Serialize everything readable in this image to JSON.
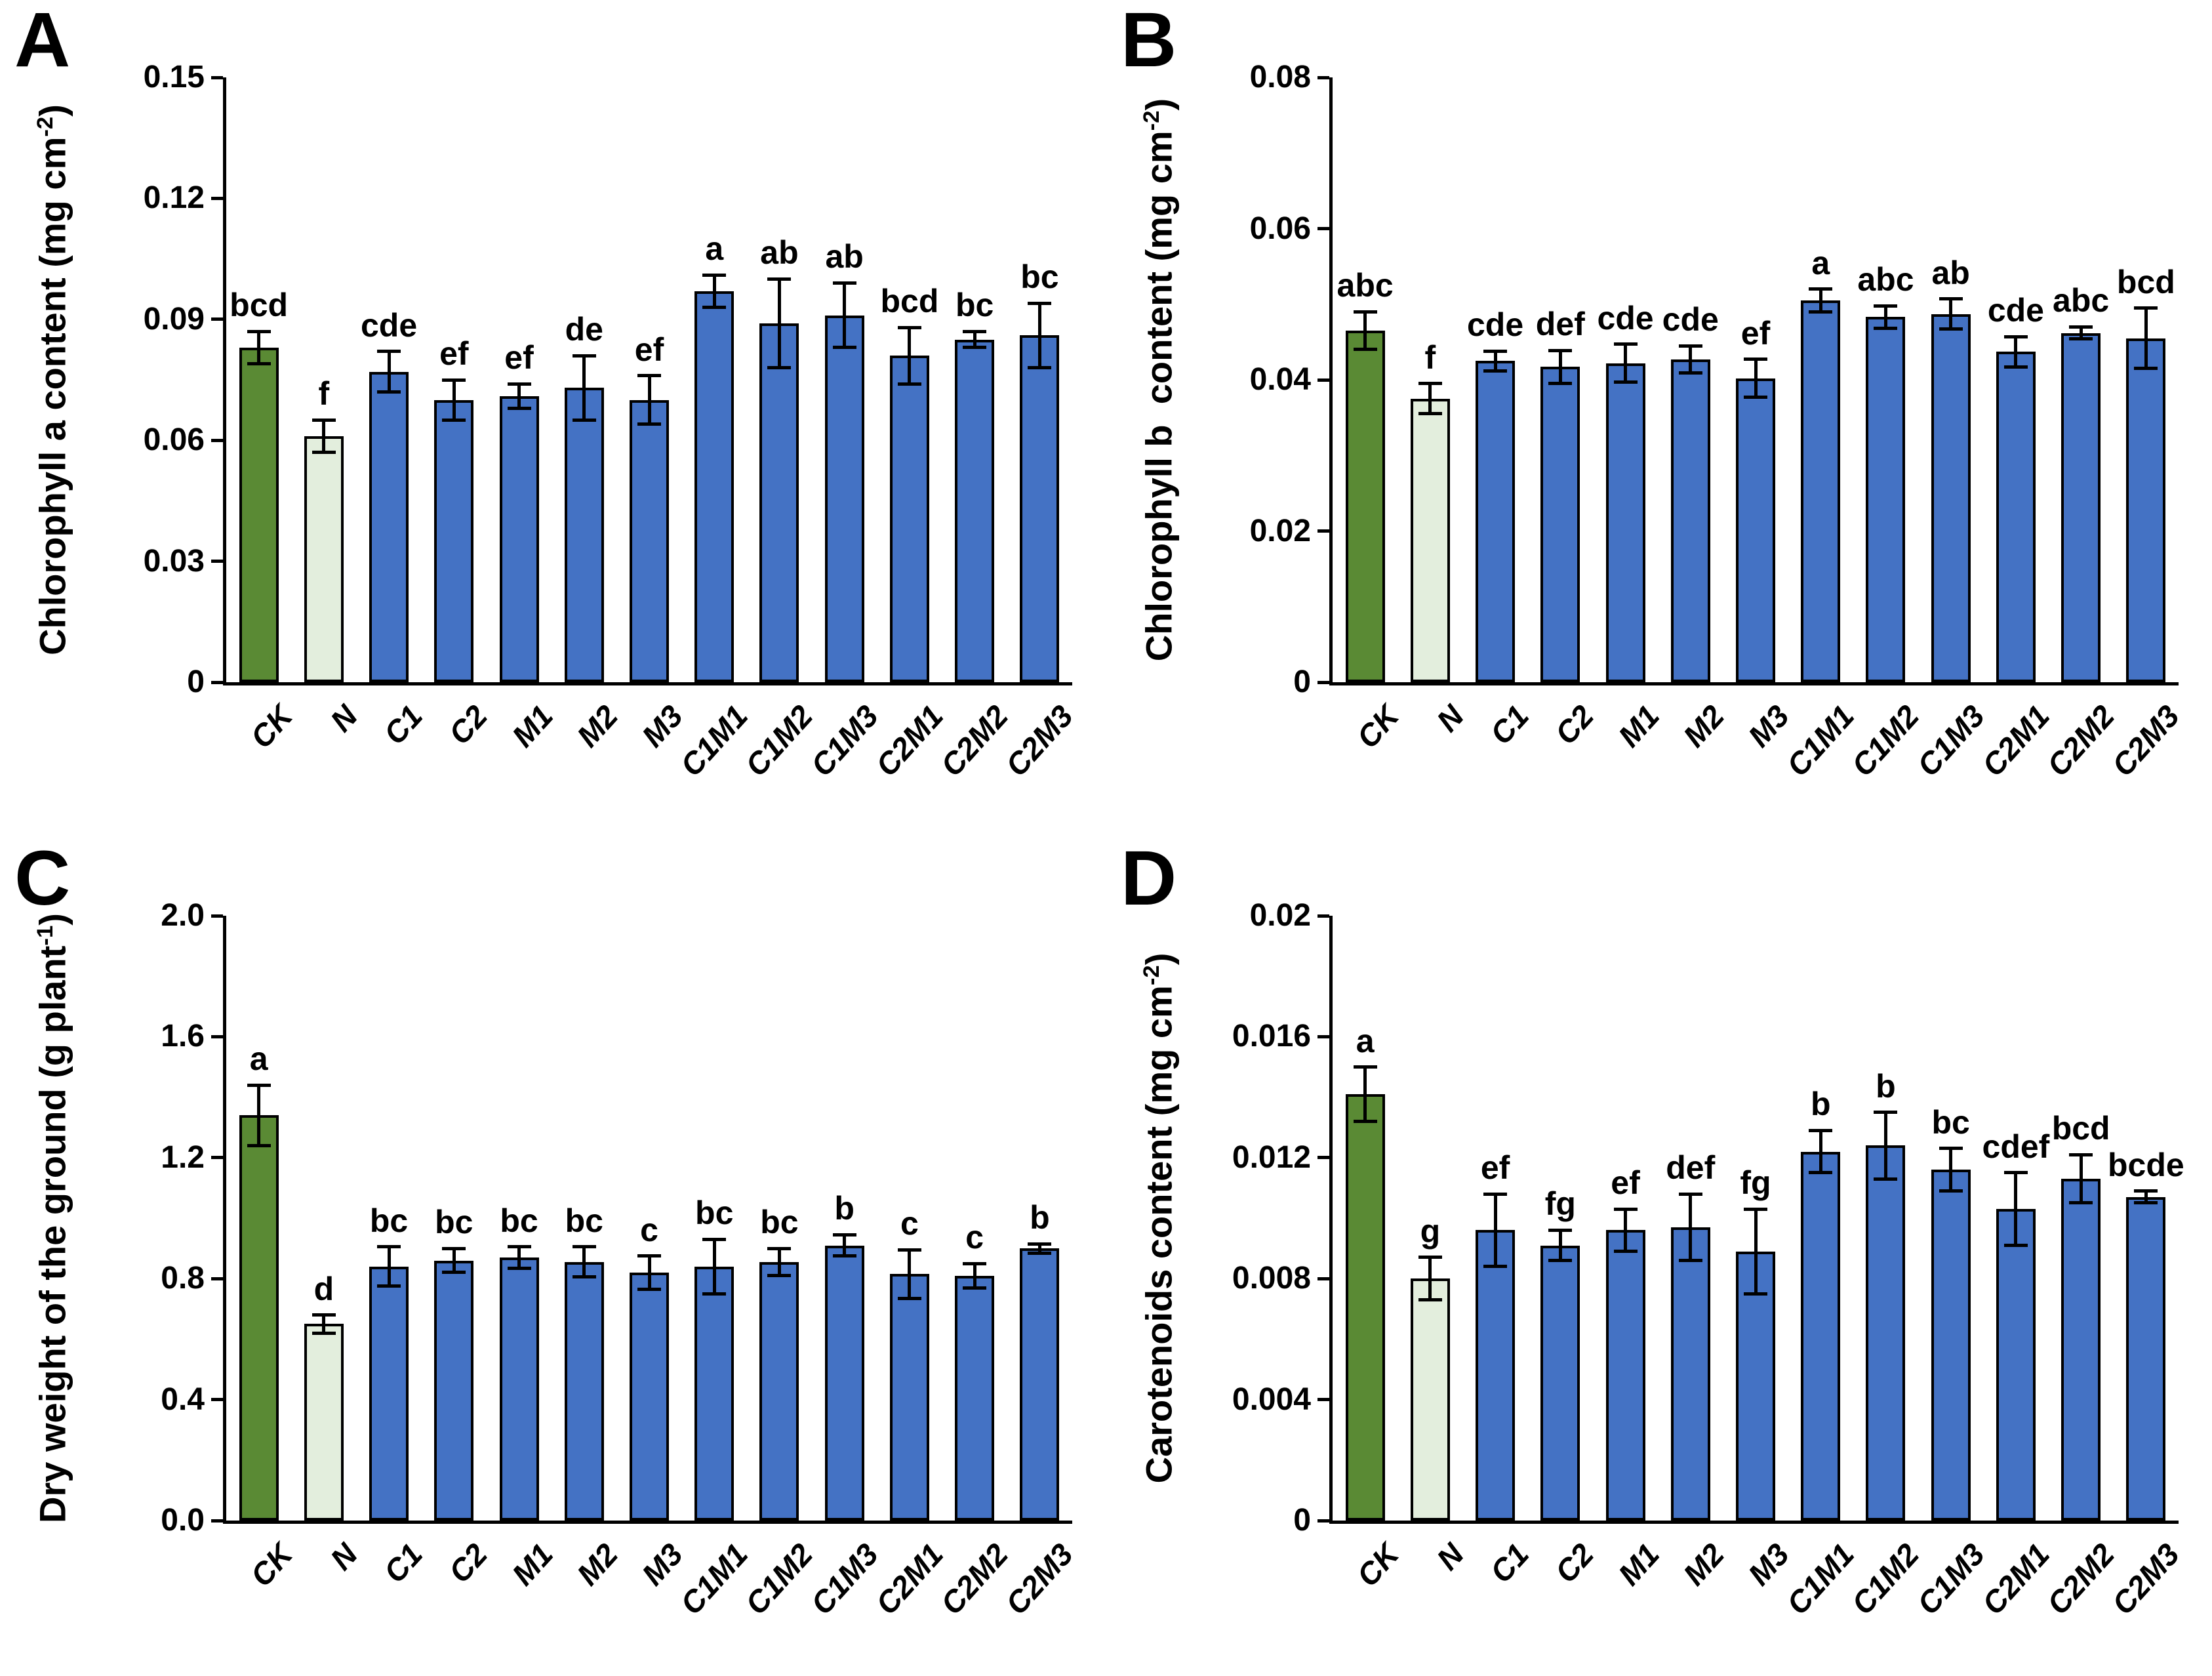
{
  "style": {
    "ck_color": "#5a8a34",
    "n_color": "#e3eedd",
    "treatment_color": "#4472c4",
    "outline_color": "#000000"
  },
  "chart_data": [
    {
      "panel": "A",
      "type": "bar",
      "title": "",
      "xlabel": "",
      "ylabel": "Chlorophyll a content (mg cm-2)",
      "ylabel_parts": [
        {
          "t": "Chlorophyll a content (mg cm"
        },
        {
          "t": "-2",
          "sup": true
        },
        {
          "t": ")"
        }
      ],
      "ylim": [
        0,
        0.15
      ],
      "yticks": [
        0,
        0.03,
        0.06,
        0.09,
        0.12,
        0.15
      ],
      "ytick_labels": [
        "0",
        "0.03",
        "0.06",
        "0.09",
        "0.12",
        "0.15"
      ],
      "grid": false,
      "legend": "none",
      "categories": [
        "CK",
        "N",
        "C1",
        "C2",
        "M1",
        "M2",
        "M3",
        "C1M1",
        "C1M2",
        "C1M3",
        "C2M1",
        "C2M2",
        "C2M3"
      ],
      "values": [
        0.083,
        0.061,
        0.077,
        0.07,
        0.071,
        0.073,
        0.07,
        0.097,
        0.089,
        0.091,
        0.081,
        0.085,
        0.086
      ],
      "errors": [
        0.004,
        0.004,
        0.005,
        0.005,
        0.003,
        0.008,
        0.006,
        0.004,
        0.011,
        0.008,
        0.007,
        0.002,
        0.008
      ],
      "sig_letters": [
        "bcd",
        "f",
        "cde",
        "ef",
        "ef",
        "de",
        "ef",
        "a",
        "ab",
        "ab",
        "bcd",
        "bc",
        "bc"
      ]
    },
    {
      "panel": "B",
      "type": "bar",
      "title": "",
      "xlabel": "",
      "ylabel": "Chlorophyll b  content (mg cm-2)",
      "ylabel_parts": [
        {
          "t": "Chlorophyll b  content (mg cm"
        },
        {
          "t": "-2",
          "sup": true
        },
        {
          "t": ")"
        }
      ],
      "ylim": [
        0,
        0.08
      ],
      "yticks": [
        0,
        0.02,
        0.04,
        0.06,
        0.08
      ],
      "ytick_labels": [
        "0",
        "0.02",
        "0.04",
        "0.06",
        "0.08"
      ],
      "grid": false,
      "legend": "none",
      "categories": [
        "CK",
        "N",
        "C1",
        "C2",
        "M1",
        "M2",
        "M3",
        "C1M1",
        "C1M2",
        "C1M3",
        "C2M1",
        "C2M2",
        "C2M3"
      ],
      "values": [
        0.0465,
        0.0375,
        0.0425,
        0.0417,
        0.0422,
        0.0427,
        0.0402,
        0.0505,
        0.0483,
        0.0487,
        0.0437,
        0.0462,
        0.0455
      ],
      "errors": [
        0.0025,
        0.002,
        0.0013,
        0.0022,
        0.0025,
        0.0018,
        0.0025,
        0.0015,
        0.0015,
        0.002,
        0.002,
        0.0008,
        0.004
      ],
      "sig_letters": [
        "abc",
        "f",
        "cde",
        "def",
        "cde",
        "cde",
        "ef",
        "a",
        "abc",
        "ab",
        "cde",
        "abc",
        "bcd"
      ]
    },
    {
      "panel": "C",
      "type": "bar",
      "title": "",
      "xlabel": "",
      "ylabel": "Dry weight of the ground (g plant-1)",
      "ylabel_parts": [
        {
          "t": "Dry weight of the ground (g plant"
        },
        {
          "t": "-1",
          "sup": true
        },
        {
          "t": ")"
        }
      ],
      "ylim": [
        0,
        2.0
      ],
      "yticks": [
        0,
        0.4,
        0.8,
        1.2,
        1.6,
        2.0
      ],
      "ytick_labels": [
        "0.0",
        "0.4",
        "0.8",
        "1.2",
        "1.6",
        "2.0"
      ],
      "grid": false,
      "legend": "none",
      "categories": [
        "CK",
        "N",
        "C1",
        "C2",
        "M1",
        "M2",
        "M3",
        "C1M1",
        "C1M2",
        "C1M3",
        "C2M1",
        "C2M2",
        "C2M3"
      ],
      "values": [
        1.34,
        0.65,
        0.84,
        0.86,
        0.87,
        0.855,
        0.82,
        0.84,
        0.855,
        0.91,
        0.815,
        0.81,
        0.9
      ],
      "errors": [
        0.1,
        0.03,
        0.065,
        0.04,
        0.035,
        0.05,
        0.055,
        0.09,
        0.045,
        0.035,
        0.08,
        0.04,
        0.015
      ],
      "sig_letters": [
        "a",
        "d",
        "bc",
        "bc",
        "bc",
        "bc",
        "c",
        "bc",
        "bc",
        "b",
        "c",
        "c",
        "b"
      ]
    },
    {
      "panel": "D",
      "type": "bar",
      "title": "",
      "xlabel": "",
      "ylabel": "Carotenoids content (mg cm-2)",
      "ylabel_parts": [
        {
          "t": "Carotenoids content (mg cm"
        },
        {
          "t": "-2",
          "sup": true
        },
        {
          "t": ")"
        }
      ],
      "ylim": [
        0,
        0.02
      ],
      "yticks": [
        0,
        0.004,
        0.008,
        0.012,
        0.016,
        0.02
      ],
      "ytick_labels": [
        "0",
        "0.004",
        "0.008",
        "0.012",
        "0.016",
        "0.02"
      ],
      "grid": false,
      "legend": "none",
      "categories": [
        "CK",
        "N",
        "C1",
        "C2",
        "M1",
        "M2",
        "M3",
        "C1M1",
        "C1M2",
        "C1M3",
        "C2M1",
        "C2M2",
        "C2M3"
      ],
      "values": [
        0.0141,
        0.008,
        0.0096,
        0.0091,
        0.0096,
        0.0097,
        0.0089,
        0.0122,
        0.0124,
        0.0116,
        0.0103,
        0.0113,
        0.0107
      ],
      "errors": [
        0.0009,
        0.0007,
        0.0012,
        0.0005,
        0.0007,
        0.0011,
        0.0014,
        0.0007,
        0.0011,
        0.0007,
        0.0012,
        0.0008,
        0.0002
      ],
      "sig_letters": [
        "a",
        "g",
        "ef",
        "fg",
        "ef",
        "def",
        "fg",
        "b",
        "b",
        "bc",
        "cdef",
        "bcd",
        "bcde"
      ]
    }
  ]
}
